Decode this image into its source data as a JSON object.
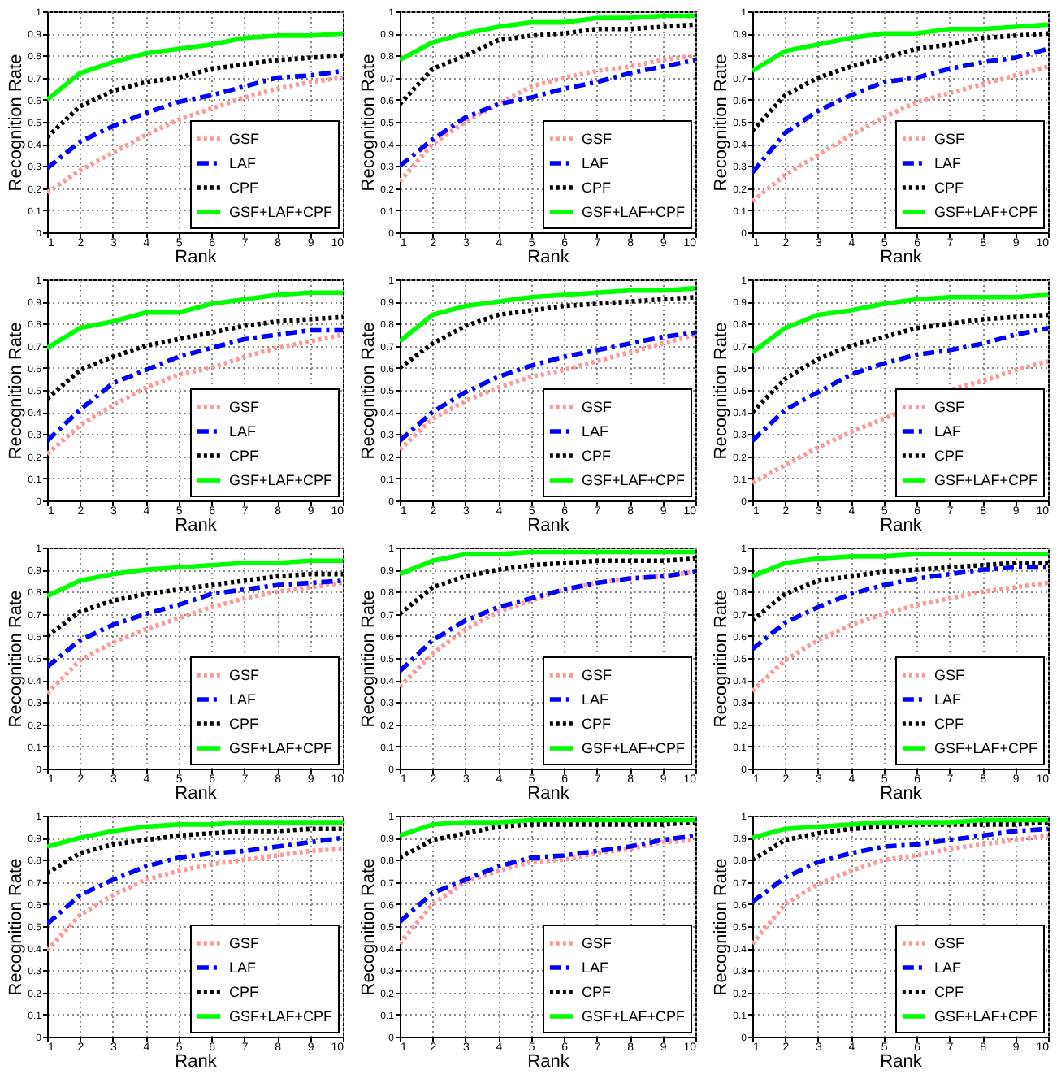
{
  "chart_data": [
    {
      "type": "line",
      "xlabel": "Rank",
      "ylabel": "Recognition Rate",
      "x": [
        1,
        2,
        3,
        4,
        5,
        6,
        7,
        8,
        9,
        10
      ],
      "xlim": [
        1,
        10
      ],
      "xticks": [
        1,
        2,
        3,
        4,
        5,
        6,
        7,
        8,
        9,
        10
      ],
      "ylim": [
        0,
        1
      ],
      "yticks": [
        0,
        0.1,
        0.2,
        0.3,
        0.4,
        0.5,
        0.6,
        0.7,
        0.8,
        0.9,
        1
      ],
      "grid": true,
      "legend": "bottom right",
      "series": [
        {
          "name": "GSF",
          "color": "#ff9999",
          "line_style": "dotted",
          "values": [
            0.18,
            0.28,
            0.36,
            0.44,
            0.51,
            0.56,
            0.61,
            0.65,
            0.68,
            0.7
          ]
        },
        {
          "name": "LAF",
          "color": "#0000ff",
          "line_style": "dashed",
          "values": [
            0.29,
            0.41,
            0.48,
            0.54,
            0.59,
            0.62,
            0.66,
            0.7,
            0.71,
            0.73
          ]
        },
        {
          "name": "CPF",
          "color": "#000000",
          "line_style": "dotted",
          "values": [
            0.43,
            0.57,
            0.64,
            0.68,
            0.7,
            0.74,
            0.76,
            0.78,
            0.79,
            0.8
          ]
        },
        {
          "name": "GSF+LAF+CPF",
          "color": "#00ff00",
          "line_style": "solid",
          "values": [
            0.6,
            0.72,
            0.77,
            0.81,
            0.83,
            0.85,
            0.88,
            0.89,
            0.89,
            0.9
          ]
        }
      ]
    },
    {
      "type": "line",
      "xlabel": "Rank",
      "ylabel": "Recognition Rate",
      "x": [
        1,
        2,
        3,
        4,
        5,
        6,
        7,
        8,
        9,
        10
      ],
      "xlim": [
        1,
        10
      ],
      "xticks": [
        1,
        2,
        3,
        4,
        5,
        6,
        7,
        8,
        9,
        10
      ],
      "ylim": [
        0,
        1
      ],
      "yticks": [
        0,
        0.1,
        0.2,
        0.3,
        0.4,
        0.5,
        0.6,
        0.7,
        0.8,
        0.9,
        1
      ],
      "grid": true,
      "legend": "bottom right",
      "series": [
        {
          "name": "GSF",
          "color": "#ff9999",
          "line_style": "dotted",
          "values": [
            0.23,
            0.4,
            0.5,
            0.58,
            0.66,
            0.7,
            0.73,
            0.75,
            0.78,
            0.8
          ]
        },
        {
          "name": "LAF",
          "color": "#0000ff",
          "line_style": "dashed",
          "values": [
            0.3,
            0.42,
            0.52,
            0.58,
            0.61,
            0.65,
            0.68,
            0.72,
            0.75,
            0.78
          ]
        },
        {
          "name": "CPF",
          "color": "#000000",
          "line_style": "dotted",
          "values": [
            0.58,
            0.74,
            0.8,
            0.87,
            0.89,
            0.9,
            0.92,
            0.92,
            0.93,
            0.94
          ]
        },
        {
          "name": "GSF+LAF+CPF",
          "color": "#00ff00",
          "line_style": "solid",
          "values": [
            0.78,
            0.86,
            0.9,
            0.93,
            0.95,
            0.95,
            0.97,
            0.97,
            0.98,
            0.98
          ]
        }
      ]
    },
    {
      "type": "line",
      "xlabel": "Rank",
      "ylabel": "Recognition Rate",
      "x": [
        1,
        2,
        3,
        4,
        5,
        6,
        7,
        8,
        9,
        10
      ],
      "xlim": [
        1,
        10
      ],
      "xticks": [
        1,
        2,
        3,
        4,
        5,
        6,
        7,
        8,
        9,
        10
      ],
      "ylim": [
        0,
        1
      ],
      "yticks": [
        0,
        0.1,
        0.2,
        0.3,
        0.4,
        0.5,
        0.6,
        0.7,
        0.8,
        0.9,
        1
      ],
      "grid": true,
      "legend": "bottom right",
      "series": [
        {
          "name": "GSF",
          "color": "#ff9999",
          "line_style": "dotted",
          "values": [
            0.14,
            0.26,
            0.35,
            0.44,
            0.52,
            0.59,
            0.63,
            0.67,
            0.71,
            0.75
          ]
        },
        {
          "name": "LAF",
          "color": "#0000ff",
          "line_style": "dashed",
          "values": [
            0.27,
            0.45,
            0.55,
            0.62,
            0.68,
            0.7,
            0.74,
            0.77,
            0.79,
            0.83
          ]
        },
        {
          "name": "CPF",
          "color": "#000000",
          "line_style": "dotted",
          "values": [
            0.46,
            0.62,
            0.7,
            0.75,
            0.79,
            0.83,
            0.85,
            0.88,
            0.89,
            0.9
          ]
        },
        {
          "name": "GSF+LAF+CPF",
          "color": "#00ff00",
          "line_style": "solid",
          "values": [
            0.73,
            0.82,
            0.85,
            0.88,
            0.9,
            0.9,
            0.92,
            0.92,
            0.93,
            0.94
          ]
        }
      ]
    },
    {
      "type": "line",
      "xlabel": "Rank",
      "ylabel": "Recognition Rate",
      "x": [
        1,
        2,
        3,
        4,
        5,
        6,
        7,
        8,
        9,
        10
      ],
      "xlim": [
        1,
        10
      ],
      "xticks": [
        1,
        2,
        3,
        4,
        5,
        6,
        7,
        8,
        9,
        10
      ],
      "ylim": [
        0,
        1
      ],
      "yticks": [
        0,
        0.1,
        0.2,
        0.3,
        0.4,
        0.5,
        0.6,
        0.7,
        0.8,
        0.9,
        1
      ],
      "grid": true,
      "legend": "bottom right",
      "series": [
        {
          "name": "GSF",
          "color": "#ff9999",
          "line_style": "dotted",
          "values": [
            0.21,
            0.34,
            0.43,
            0.51,
            0.57,
            0.6,
            0.65,
            0.69,
            0.72,
            0.75
          ]
        },
        {
          "name": "LAF",
          "color": "#0000ff",
          "line_style": "dashed",
          "values": [
            0.27,
            0.41,
            0.53,
            0.59,
            0.65,
            0.69,
            0.73,
            0.75,
            0.77,
            0.77
          ]
        },
        {
          "name": "CPF",
          "color": "#000000",
          "line_style": "dotted",
          "values": [
            0.46,
            0.59,
            0.65,
            0.7,
            0.73,
            0.76,
            0.79,
            0.81,
            0.82,
            0.83
          ]
        },
        {
          "name": "GSF+LAF+CPF",
          "color": "#00ff00",
          "line_style": "solid",
          "values": [
            0.69,
            0.78,
            0.81,
            0.85,
            0.85,
            0.89,
            0.91,
            0.93,
            0.94,
            0.94
          ]
        }
      ]
    },
    {
      "type": "line",
      "xlabel": "Rank",
      "ylabel": "Recognition Rate",
      "x": [
        1,
        2,
        3,
        4,
        5,
        6,
        7,
        8,
        9,
        10
      ],
      "xlim": [
        1,
        10
      ],
      "xticks": [
        1,
        2,
        3,
        4,
        5,
        6,
        7,
        8,
        9,
        10
      ],
      "ylim": [
        0,
        1
      ],
      "yticks": [
        0,
        0.1,
        0.2,
        0.3,
        0.4,
        0.5,
        0.6,
        0.7,
        0.8,
        0.9,
        1
      ],
      "grid": true,
      "legend": "bottom right",
      "series": [
        {
          "name": "GSF",
          "color": "#ff9999",
          "line_style": "dotted",
          "values": [
            0.23,
            0.37,
            0.45,
            0.51,
            0.56,
            0.59,
            0.63,
            0.67,
            0.71,
            0.75
          ]
        },
        {
          "name": "LAF",
          "color": "#0000ff",
          "line_style": "dashed",
          "values": [
            0.27,
            0.4,
            0.49,
            0.56,
            0.61,
            0.65,
            0.68,
            0.71,
            0.74,
            0.76
          ]
        },
        {
          "name": "CPF",
          "color": "#000000",
          "line_style": "dotted",
          "values": [
            0.6,
            0.71,
            0.79,
            0.84,
            0.86,
            0.88,
            0.89,
            0.9,
            0.91,
            0.92
          ]
        },
        {
          "name": "GSF+LAF+CPF",
          "color": "#00ff00",
          "line_style": "solid",
          "values": [
            0.72,
            0.84,
            0.88,
            0.9,
            0.92,
            0.93,
            0.94,
            0.95,
            0.95,
            0.96
          ]
        }
      ]
    },
    {
      "type": "line",
      "xlabel": "Rank",
      "ylabel": "Recognition Rate",
      "x": [
        1,
        2,
        3,
        4,
        5,
        6,
        7,
        8,
        9,
        10
      ],
      "xlim": [
        1,
        10
      ],
      "xticks": [
        1,
        2,
        3,
        4,
        5,
        6,
        7,
        8,
        9,
        10
      ],
      "ylim": [
        0,
        1
      ],
      "yticks": [
        0,
        0.1,
        0.2,
        0.3,
        0.4,
        0.5,
        0.6,
        0.7,
        0.8,
        0.9,
        1
      ],
      "grid": true,
      "legend": "bottom right",
      "series": [
        {
          "name": "GSF",
          "color": "#ff9999",
          "line_style": "dotted",
          "values": [
            0.08,
            0.16,
            0.24,
            0.31,
            0.37,
            0.43,
            0.5,
            0.54,
            0.59,
            0.63
          ]
        },
        {
          "name": "LAF",
          "color": "#0000ff",
          "line_style": "dashed",
          "values": [
            0.27,
            0.41,
            0.49,
            0.57,
            0.62,
            0.66,
            0.68,
            0.71,
            0.75,
            0.78
          ]
        },
        {
          "name": "CPF",
          "color": "#000000",
          "line_style": "dotted",
          "values": [
            0.4,
            0.55,
            0.64,
            0.7,
            0.74,
            0.78,
            0.8,
            0.82,
            0.83,
            0.84
          ]
        },
        {
          "name": "GSF+LAF+CPF",
          "color": "#00ff00",
          "line_style": "solid",
          "values": [
            0.67,
            0.78,
            0.84,
            0.86,
            0.89,
            0.91,
            0.92,
            0.92,
            0.92,
            0.93
          ]
        }
      ]
    },
    {
      "type": "line",
      "xlabel": "Rank",
      "ylabel": "Recognition Rate",
      "x": [
        1,
        2,
        3,
        4,
        5,
        6,
        7,
        8,
        9,
        10
      ],
      "xlim": [
        1,
        10
      ],
      "xticks": [
        1,
        2,
        3,
        4,
        5,
        6,
        7,
        8,
        9,
        10
      ],
      "ylim": [
        0,
        1
      ],
      "yticks": [
        0,
        0.1,
        0.2,
        0.3,
        0.4,
        0.5,
        0.6,
        0.7,
        0.8,
        0.9,
        1
      ],
      "grid": true,
      "legend": "bottom right",
      "series": [
        {
          "name": "GSF",
          "color": "#ff9999",
          "line_style": "dotted",
          "values": [
            0.34,
            0.49,
            0.57,
            0.63,
            0.68,
            0.73,
            0.77,
            0.8,
            0.82,
            0.84
          ]
        },
        {
          "name": "LAF",
          "color": "#0000ff",
          "line_style": "dashed",
          "values": [
            0.46,
            0.58,
            0.65,
            0.7,
            0.74,
            0.79,
            0.81,
            0.83,
            0.84,
            0.85
          ]
        },
        {
          "name": "CPF",
          "color": "#000000",
          "line_style": "dotted",
          "values": [
            0.6,
            0.71,
            0.76,
            0.79,
            0.81,
            0.83,
            0.85,
            0.87,
            0.88,
            0.88
          ]
        },
        {
          "name": "GSF+LAF+CPF",
          "color": "#00ff00",
          "line_style": "solid",
          "values": [
            0.78,
            0.85,
            0.88,
            0.9,
            0.91,
            0.92,
            0.93,
            0.93,
            0.94,
            0.94
          ]
        }
      ]
    },
    {
      "type": "line",
      "xlabel": "Rank",
      "ylabel": "Recognition Rate",
      "x": [
        1,
        2,
        3,
        4,
        5,
        6,
        7,
        8,
        9,
        10
      ],
      "xlim": [
        1,
        10
      ],
      "xticks": [
        1,
        2,
        3,
        4,
        5,
        6,
        7,
        8,
        9,
        10
      ],
      "ylim": [
        0,
        1
      ],
      "yticks": [
        0,
        0.1,
        0.2,
        0.3,
        0.4,
        0.5,
        0.6,
        0.7,
        0.8,
        0.9,
        1
      ],
      "grid": true,
      "legend": "bottom right",
      "series": [
        {
          "name": "GSF",
          "color": "#ff9999",
          "line_style": "dotted",
          "values": [
            0.37,
            0.52,
            0.63,
            0.71,
            0.76,
            0.81,
            0.84,
            0.86,
            0.87,
            0.89
          ]
        },
        {
          "name": "LAF",
          "color": "#0000ff",
          "line_style": "dashed",
          "values": [
            0.44,
            0.58,
            0.67,
            0.73,
            0.77,
            0.81,
            0.84,
            0.86,
            0.87,
            0.89
          ]
        },
        {
          "name": "CPF",
          "color": "#000000",
          "line_style": "dotted",
          "values": [
            0.7,
            0.82,
            0.87,
            0.9,
            0.92,
            0.93,
            0.94,
            0.94,
            0.94,
            0.95
          ]
        },
        {
          "name": "GSF+LAF+CPF",
          "color": "#00ff00",
          "line_style": "solid",
          "values": [
            0.88,
            0.94,
            0.97,
            0.97,
            0.98,
            0.98,
            0.98,
            0.98,
            0.98,
            0.98
          ]
        }
      ]
    },
    {
      "type": "line",
      "xlabel": "Rank",
      "ylabel": "Recognition Rate",
      "x": [
        1,
        2,
        3,
        4,
        5,
        6,
        7,
        8,
        9,
        10
      ],
      "xlim": [
        1,
        10
      ],
      "xticks": [
        1,
        2,
        3,
        4,
        5,
        6,
        7,
        8,
        9,
        10
      ],
      "ylim": [
        0,
        1
      ],
      "yticks": [
        0,
        0.1,
        0.2,
        0.3,
        0.4,
        0.5,
        0.6,
        0.7,
        0.8,
        0.9,
        1
      ],
      "grid": true,
      "legend": "bottom right",
      "series": [
        {
          "name": "GSF",
          "color": "#ff9999",
          "line_style": "dotted",
          "values": [
            0.35,
            0.49,
            0.58,
            0.65,
            0.7,
            0.74,
            0.77,
            0.8,
            0.82,
            0.84
          ]
        },
        {
          "name": "LAF",
          "color": "#0000ff",
          "line_style": "dashed",
          "values": [
            0.54,
            0.66,
            0.73,
            0.79,
            0.83,
            0.86,
            0.88,
            0.9,
            0.91,
            0.91
          ]
        },
        {
          "name": "CPF",
          "color": "#000000",
          "line_style": "dotted",
          "values": [
            0.67,
            0.79,
            0.85,
            0.87,
            0.89,
            0.9,
            0.91,
            0.92,
            0.93,
            0.93
          ]
        },
        {
          "name": "GSF+LAF+CPF",
          "color": "#00ff00",
          "line_style": "solid",
          "values": [
            0.87,
            0.93,
            0.95,
            0.96,
            0.96,
            0.97,
            0.97,
            0.97,
            0.97,
            0.97
          ]
        }
      ]
    },
    {
      "type": "line",
      "xlabel": "Rank",
      "ylabel": "Recognition Rate",
      "x": [
        1,
        2,
        3,
        4,
        5,
        6,
        7,
        8,
        9,
        10
      ],
      "xlim": [
        1,
        10
      ],
      "xticks": [
        1,
        2,
        3,
        4,
        5,
        6,
        7,
        8,
        9,
        10
      ],
      "ylim": [
        0,
        1
      ],
      "yticks": [
        0,
        0.1,
        0.2,
        0.3,
        0.4,
        0.5,
        0.6,
        0.7,
        0.8,
        0.9,
        1
      ],
      "grid": true,
      "legend": "bottom right",
      "series": [
        {
          "name": "GSF",
          "color": "#ff9999",
          "line_style": "dotted",
          "values": [
            0.39,
            0.55,
            0.64,
            0.71,
            0.75,
            0.78,
            0.8,
            0.82,
            0.84,
            0.85
          ]
        },
        {
          "name": "LAF",
          "color": "#0000ff",
          "line_style": "dashed",
          "values": [
            0.51,
            0.64,
            0.71,
            0.77,
            0.81,
            0.83,
            0.84,
            0.86,
            0.88,
            0.9
          ]
        },
        {
          "name": "CPF",
          "color": "#000000",
          "line_style": "dotted",
          "values": [
            0.74,
            0.83,
            0.87,
            0.89,
            0.91,
            0.92,
            0.93,
            0.93,
            0.94,
            0.94
          ]
        },
        {
          "name": "GSF+LAF+CPF",
          "color": "#00ff00",
          "line_style": "solid",
          "values": [
            0.86,
            0.9,
            0.93,
            0.95,
            0.96,
            0.96,
            0.97,
            0.97,
            0.97,
            0.97
          ]
        }
      ]
    },
    {
      "type": "line",
      "xlabel": "Rank",
      "ylabel": "Recognition Rate",
      "x": [
        1,
        2,
        3,
        4,
        5,
        6,
        7,
        8,
        9,
        10
      ],
      "xlim": [
        1,
        10
      ],
      "xticks": [
        1,
        2,
        3,
        4,
        5,
        6,
        7,
        8,
        9,
        10
      ],
      "ylim": [
        0,
        1
      ],
      "yticks": [
        0,
        0.1,
        0.2,
        0.3,
        0.4,
        0.5,
        0.6,
        0.7,
        0.8,
        0.9,
        1
      ],
      "grid": true,
      "legend": "bottom right",
      "series": [
        {
          "name": "GSF",
          "color": "#ff9999",
          "line_style": "dotted",
          "values": [
            0.42,
            0.6,
            0.7,
            0.75,
            0.79,
            0.8,
            0.83,
            0.85,
            0.88,
            0.89
          ]
        },
        {
          "name": "LAF",
          "color": "#0000ff",
          "line_style": "dashed",
          "values": [
            0.52,
            0.65,
            0.71,
            0.77,
            0.81,
            0.82,
            0.84,
            0.86,
            0.89,
            0.91
          ]
        },
        {
          "name": "CPF",
          "color": "#000000",
          "line_style": "dotted",
          "values": [
            0.81,
            0.89,
            0.92,
            0.95,
            0.96,
            0.96,
            0.96,
            0.96,
            0.96,
            0.97
          ]
        },
        {
          "name": "GSF+LAF+CPF",
          "color": "#00ff00",
          "line_style": "solid",
          "values": [
            0.91,
            0.96,
            0.97,
            0.97,
            0.98,
            0.98,
            0.98,
            0.98,
            0.98,
            0.98
          ]
        }
      ]
    },
    {
      "type": "line",
      "xlabel": "Rank",
      "ylabel": "Recognition Rate",
      "x": [
        1,
        2,
        3,
        4,
        5,
        6,
        7,
        8,
        9,
        10
      ],
      "xlim": [
        1,
        10
      ],
      "xticks": [
        1,
        2,
        3,
        4,
        5,
        6,
        7,
        8,
        9,
        10
      ],
      "ylim": [
        0,
        1
      ],
      "yticks": [
        0,
        0.1,
        0.2,
        0.3,
        0.4,
        0.5,
        0.6,
        0.7,
        0.8,
        0.9,
        1
      ],
      "grid": true,
      "legend": "bottom right",
      "series": [
        {
          "name": "GSF",
          "color": "#ff9999",
          "line_style": "dotted",
          "values": [
            0.42,
            0.6,
            0.69,
            0.75,
            0.8,
            0.82,
            0.85,
            0.87,
            0.89,
            0.91
          ]
        },
        {
          "name": "LAF",
          "color": "#0000ff",
          "line_style": "dashed",
          "values": [
            0.61,
            0.72,
            0.79,
            0.83,
            0.86,
            0.87,
            0.89,
            0.91,
            0.93,
            0.94
          ]
        },
        {
          "name": "CPF",
          "color": "#000000",
          "line_style": "dotted",
          "values": [
            0.8,
            0.89,
            0.92,
            0.94,
            0.95,
            0.96,
            0.96,
            0.96,
            0.96,
            0.97
          ]
        },
        {
          "name": "GSF+LAF+CPF",
          "color": "#00ff00",
          "line_style": "solid",
          "values": [
            0.9,
            0.94,
            0.95,
            0.96,
            0.97,
            0.97,
            0.97,
            0.98,
            0.98,
            0.98
          ]
        }
      ]
    }
  ]
}
